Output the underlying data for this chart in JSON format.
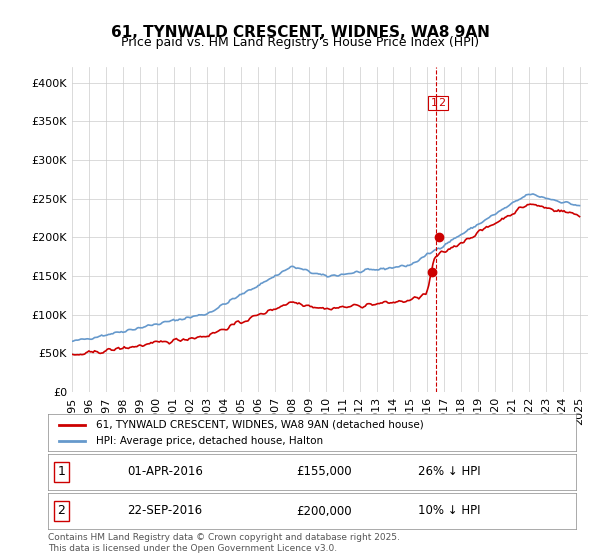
{
  "title": "61, TYNWALD CRESCENT, WIDNES, WA8 9AN",
  "subtitle": "Price paid vs. HM Land Registry's House Price Index (HPI)",
  "ylabel_values": [
    "£0",
    "£50K",
    "£100K",
    "£150K",
    "£200K",
    "£250K",
    "£300K",
    "£350K",
    "£400K"
  ],
  "ylim": [
    0,
    420000
  ],
  "yticks": [
    0,
    50000,
    100000,
    150000,
    200000,
    250000,
    300000,
    350000,
    400000
  ],
  "hpi_color": "#6699cc",
  "price_color": "#cc0000",
  "marker_color": "#cc0000",
  "vline_color": "#cc0000",
  "background_color": "#ffffff",
  "grid_color": "#cccccc",
  "legend_label_red": "61, TYNWALD CRESCENT, WIDNES, WA8 9AN (detached house)",
  "legend_label_blue": "HPI: Average price, detached house, Halton",
  "annotation1_box": "1",
  "annotation1_date": "01-APR-2016",
  "annotation1_price": "£155,000",
  "annotation1_hpi": "26% ↓ HPI",
  "annotation2_box": "2",
  "annotation2_date": "22-SEP-2016",
  "annotation2_price": "£200,000",
  "annotation2_hpi": "10% ↓ HPI",
  "footnote": "Contains HM Land Registry data © Crown copyright and database right 2025.\nThis data is licensed under the Open Government Licence v3.0.",
  "xstart_year": 1995,
  "xend_year": 2025
}
